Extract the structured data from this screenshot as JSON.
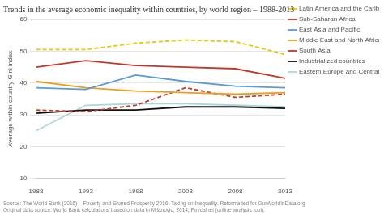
{
  "chart_data": {
    "type": "line",
    "title": "Trends in the average economic inequality within countries, by world region – 1988-2013",
    "y_label": "Average within-country Gini index",
    "x": [
      1988,
      1993,
      1998,
      2003,
      2008,
      2013
    ],
    "series": [
      {
        "name": "Latin America and the Caribbean",
        "color": "#e8c800",
        "line_style": "dashed",
        "values": [
          50.5,
          50.5,
          52.5,
          53.5,
          53.0,
          49.0
        ]
      },
      {
        "name": "Sub-Saharan Africa",
        "color": "#c0392b",
        "line_style": "solid",
        "values": [
          45.0,
          47.0,
          45.5,
          45.0,
          44.5,
          41.5
        ]
      },
      {
        "name": "East Asia and Pacific",
        "color": "#5b9bd5",
        "line_style": "solid",
        "values": [
          38.5,
          38.0,
          42.5,
          40.5,
          39.0,
          38.5
        ]
      },
      {
        "name": "Middle East and North Africa",
        "color": "#e8a020",
        "line_style": "solid",
        "values": [
          40.5,
          38.5,
          37.5,
          37.0,
          36.5,
          37.0
        ]
      },
      {
        "name": "South Asia",
        "color": "#c0392b",
        "line_style": "dashed",
        "values": [
          31.5,
          31.0,
          33.0,
          38.5,
          35.5,
          36.5
        ]
      },
      {
        "name": "Industrialized countries",
        "color": "#111111",
        "line_style": "solid",
        "values": [
          30.5,
          31.5,
          31.5,
          32.5,
          32.5,
          32.0
        ]
      },
      {
        "name": "Eastern Europe and Central Asia",
        "color": "#a8d8d8",
        "line_style": "solid",
        "values": [
          25.0,
          33.0,
          33.5,
          33.5,
          33.0,
          32.5
        ]
      }
    ],
    "xlim": [
      1988,
      2013
    ],
    "xticks": [
      1988,
      1993,
      1998,
      2003,
      2008,
      2013
    ],
    "ylim": [
      10,
      60
    ],
    "yticks": [
      10,
      20,
      30,
      40,
      50,
      60
    ],
    "grid": "y",
    "legend": "right",
    "annotations": [
      "Source: The World Bank (2016) – Poverty and Shared Prosperity 2016: Taking on Inequality. Reformatted for OurWorldInData.org",
      "Original data source: World Bank calculations based on data in Milanovic, 2014, Povcalnet (online analysis tool)."
    ]
  }
}
